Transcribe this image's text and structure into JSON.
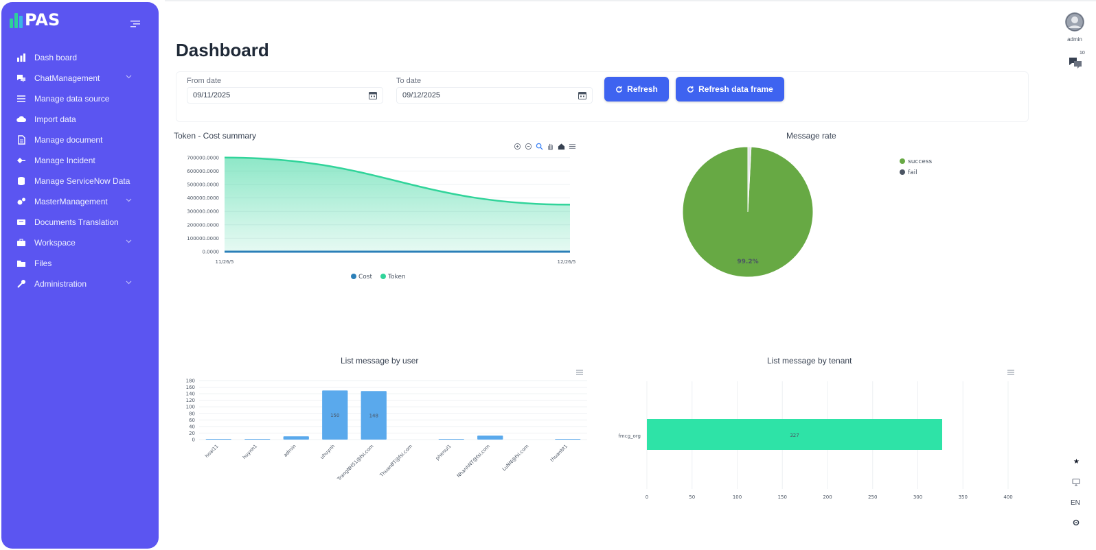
{
  "app": {
    "name": "PAS"
  },
  "sidebar": {
    "items": [
      {
        "label": "Dash board",
        "icon": "chart-icon",
        "chevron": false
      },
      {
        "label": "ChatManagement",
        "icon": "chat-icon",
        "chevron": true
      },
      {
        "label": "Manage data source",
        "icon": "list-icon",
        "chevron": false
      },
      {
        "label": "Import data",
        "icon": "cloud-upload-icon",
        "chevron": false
      },
      {
        "label": "Manage document",
        "icon": "document-icon",
        "chevron": false
      },
      {
        "label": "Manage Incident",
        "icon": "incident-icon",
        "chevron": false
      },
      {
        "label": "Manage ServiceNow Data",
        "icon": "database-icon",
        "chevron": false
      },
      {
        "label": "MasterManagement",
        "icon": "gears-icon",
        "chevron": true
      },
      {
        "label": "Documents Translation",
        "icon": "translate-icon",
        "chevron": false
      },
      {
        "label": "Workspace",
        "icon": "briefcase-icon",
        "chevron": true
      },
      {
        "label": "Files",
        "icon": "folder-icon",
        "chevron": false
      },
      {
        "label": "Administration",
        "icon": "wrench-icon",
        "chevron": true
      }
    ]
  },
  "header": {
    "title": "Dashboard",
    "user": "admin",
    "notifications_count": "10"
  },
  "filters": {
    "from_label": "From date",
    "from_value": "09/11/2025",
    "to_label": "To date",
    "to_value": "09/12/2025",
    "refresh_label": "Refresh",
    "refresh_frame_label": "Refresh data frame"
  },
  "rail": {
    "lang": "EN"
  },
  "colors": {
    "sidebar": "#5b55f1",
    "primary_button": "#3e63f0",
    "token_area": "#31d49a",
    "cost_line": "#2b7fb8",
    "pie_success": "#67a944",
    "bar_user": "#5aa9ec",
    "bar_tenant": "#2ee3a7"
  },
  "chart_data": [
    {
      "type": "area",
      "title": "Token - Cost summary",
      "x": [
        "11/26/5",
        "12/26/5"
      ],
      "y_ticks": [
        "0.0000",
        "100000.0000",
        "200000.0000",
        "300000.0000",
        "400000.0000",
        "500000.0000",
        "600000.0000",
        "700000.0000"
      ],
      "ylim": [
        0,
        750000
      ],
      "series": [
        {
          "name": "Cost",
          "values": [
            0,
            0
          ]
        },
        {
          "name": "Token",
          "values": [
            700000,
            350000
          ]
        }
      ],
      "legend": "bottom"
    },
    {
      "type": "pie",
      "title": "Message rate",
      "labels": [
        "success",
        "fail"
      ],
      "values": [
        99.2,
        0.8
      ],
      "slice_labels": [
        "99.2%",
        ""
      ],
      "legend": "top-right"
    },
    {
      "type": "bar",
      "title": "List message by user",
      "categories": [
        "hoai11",
        "huynh1",
        "admin",
        "uhuynh",
        "TrangNH51@fsi.com",
        "ThuanBT@fsi.com",
        "phenul1",
        "NhanhNT@fsi.com",
        "LuNN@fsi.com",
        "thuanbt1"
      ],
      "values": [
        2,
        2,
        10,
        150,
        148,
        0,
        2,
        12,
        0,
        2
      ],
      "y_ticks": [
        "0",
        "20",
        "40",
        "60",
        "80",
        "100",
        "120",
        "140",
        "160",
        "180"
      ],
      "ylim": [
        0,
        180
      ]
    },
    {
      "type": "bar",
      "orientation": "horizontal",
      "title": "List message by tenant",
      "categories": [
        "fmcg_org"
      ],
      "values": [
        327
      ],
      "x_ticks": [
        "0",
        "50",
        "100",
        "150",
        "200",
        "250",
        "300",
        "350",
        "400"
      ],
      "xlim": [
        0,
        400
      ]
    }
  ]
}
